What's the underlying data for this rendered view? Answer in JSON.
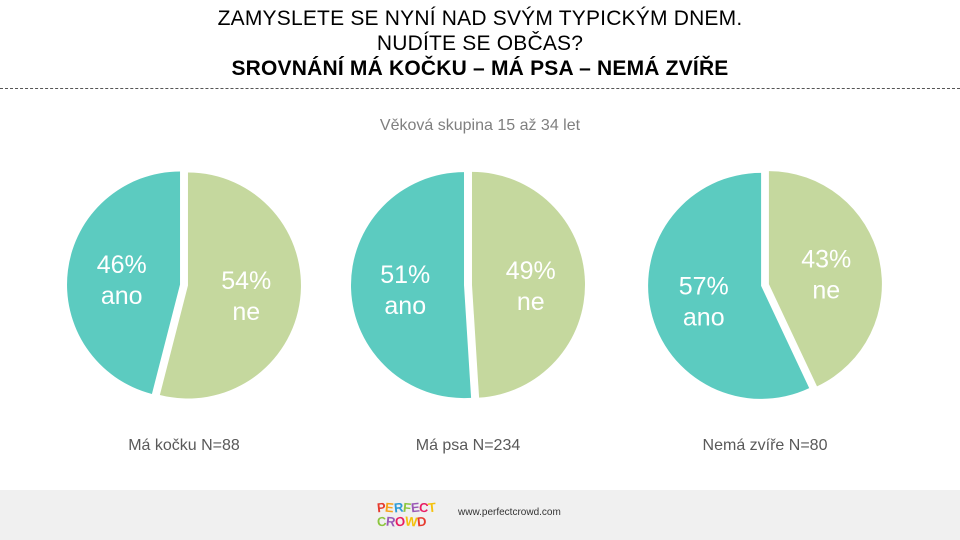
{
  "header": {
    "title_line1": "ZAMYSLETE SE NYNÍ NAD SVÝM TYPICKÝM DNEM.",
    "title_line2": "NUDÍTE SE OBČAS?",
    "title_line3": "SROVNÁNÍ MÁ KOČKU – MÁ PSA – NEMÁ ZVÍŘE"
  },
  "subtitle": "Věková skupina 15 až 34 let",
  "colors": {
    "ano": "#5ccbc0",
    "ne": "#c5d89e"
  },
  "chart_data": [
    {
      "type": "pie",
      "title": "Má kočku N=88",
      "slices": [
        {
          "label": "ano",
          "value": 46,
          "display": "46%"
        },
        {
          "label": "ne",
          "value": 54,
          "display": "54%"
        }
      ]
    },
    {
      "type": "pie",
      "title": "Má psa N=234",
      "slices": [
        {
          "label": "ano",
          "value": 51,
          "display": "51%"
        },
        {
          "label": "ne",
          "value": 49,
          "display": "49%"
        }
      ]
    },
    {
      "type": "pie",
      "title": "Nemá zvíře N=80",
      "slices": [
        {
          "label": "ano",
          "value": 57,
          "display": "57%"
        },
        {
          "label": "ne",
          "value": 43,
          "display": "43%"
        }
      ]
    }
  ],
  "footer": {
    "logo_line1": "PERFECT",
    "logo_line2": "CROWD",
    "logo_colors": [
      "#e63b2e",
      "#f7a21b",
      "#2e9bd6",
      "#8cc63f",
      "#9b59b6",
      "#e91e63",
      "#f4c20d"
    ],
    "url": "www.perfectcrowd.com"
  }
}
